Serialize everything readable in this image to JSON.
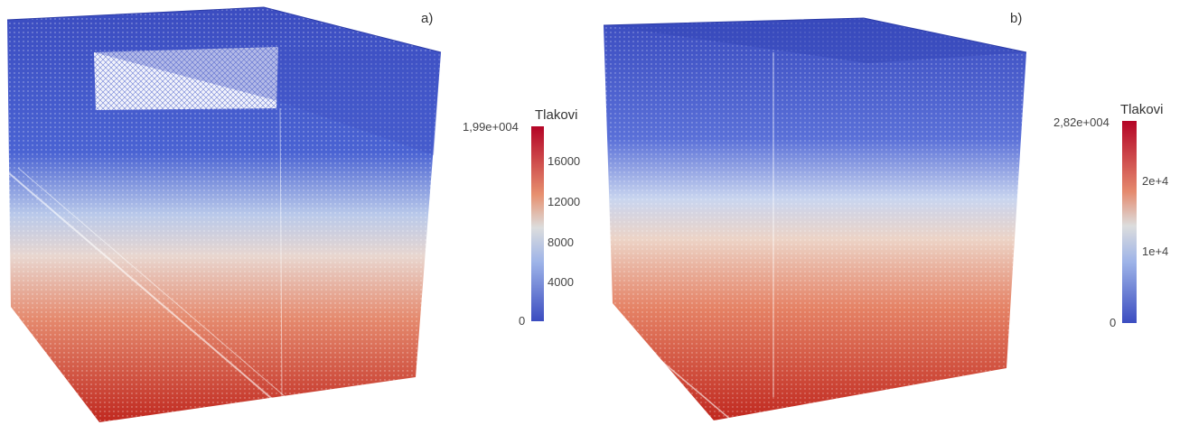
{
  "panels": [
    {
      "id": "a",
      "label": "a)",
      "colorbar": {
        "title": "Tlakovi",
        "max_label": "1,99e+004",
        "min_label": "0",
        "ticks": [
          "16000",
          "12000",
          "8000",
          "4000"
        ]
      }
    },
    {
      "id": "b",
      "label": "b)",
      "colorbar": {
        "title": "Tlakovi",
        "max_label": "2,82e+004",
        "min_label": "0",
        "ticks": [
          "2e+4",
          "1e+4"
        ]
      }
    }
  ],
  "colors": {
    "low": "#3b4cc0",
    "mid": "#dcdddd",
    "high": "#b40426"
  }
}
